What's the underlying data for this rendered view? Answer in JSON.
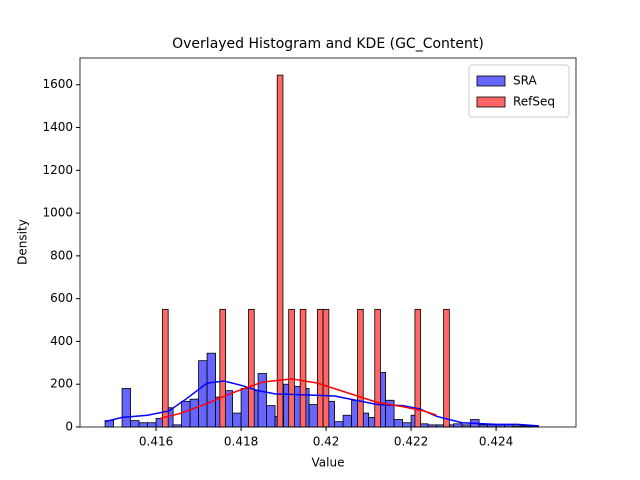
{
  "chart_data": {
    "type": "histogram",
    "title": "Overlayed Histogram and KDE (GC_Content)",
    "xlabel": "Value",
    "ylabel": "Density",
    "xlim": [
      0.41421,
      0.42588
    ],
    "ylim": [
      0,
      1725
    ],
    "xticks": [
      0.416,
      0.418,
      0.42,
      0.422,
      0.424
    ],
    "yticks": [
      0,
      200,
      400,
      600,
      800,
      1000,
      1200,
      1400,
      1600
    ],
    "legend": "upper right",
    "series": [
      {
        "name": "SRA",
        "color": "#6666ff",
        "line_color": "#0000ff",
        "bins": [
          0.4148,
          0.415,
          0.4152,
          0.4154,
          0.4156,
          0.4158,
          0.416,
          0.4162,
          0.4164,
          0.4166,
          0.4168,
          0.417,
          0.4172,
          0.4174,
          0.4176,
          0.4178,
          0.418,
          0.4182,
          0.4184,
          0.4186,
          0.4188,
          0.419,
          0.4192,
          0.4194,
          0.4196,
          0.4198,
          0.42,
          0.4202,
          0.4204,
          0.4206,
          0.4208,
          0.421,
          0.4212,
          0.4214,
          0.4216,
          0.4218,
          0.422,
          0.4222,
          0.4224,
          0.4226,
          0.4228,
          0.423,
          0.4232,
          0.4234,
          0.4236,
          0.4238,
          0.424,
          0.4242,
          0.4244,
          0.4246,
          0.4248,
          0.425
        ],
        "values": [
          30,
          0,
          180,
          30,
          20,
          20,
          40,
          90,
          10,
          120,
          130,
          310,
          345,
          140,
          170,
          65,
          180,
          170,
          250,
          100,
          50,
          200,
          190,
          180,
          105,
          190,
          120,
          25,
          55,
          125,
          65,
          45,
          255,
          125,
          35,
          20,
          55,
          15,
          10,
          10,
          10,
          15,
          10,
          35,
          10,
          10,
          10,
          10,
          5,
          5,
          5
        ],
        "kde": {
          "x": [
            0.4148,
            0.4152,
            0.4158,
            0.4163,
            0.4167,
            0.4172,
            0.4176,
            0.418,
            0.4184,
            0.4188,
            0.4195,
            0.4202,
            0.4207,
            0.4212,
            0.4218,
            0.4222,
            0.4226,
            0.4232,
            0.424,
            0.4245,
            0.425
          ],
          "values": [
            25,
            45,
            55,
            75,
            130,
            205,
            215,
            195,
            170,
            155,
            150,
            145,
            125,
            105,
            100,
            85,
            50,
            20,
            12,
            12,
            5
          ]
        }
      },
      {
        "name": "RefSeq",
        "color": "#ff6666",
        "line_color": "#ff0000",
        "bins": [
          0.41615,
          0.416285,
          0.41642,
          0.416555,
          0.41669,
          0.416825,
          0.41696,
          0.417095,
          0.41723,
          0.417365,
          0.4175,
          0.417635,
          0.41777,
          0.417905,
          0.41804,
          0.418175,
          0.41831,
          0.418445,
          0.41858,
          0.418715,
          0.41885,
          0.418985,
          0.41912,
          0.419255,
          0.41939,
          0.419525,
          0.41966,
          0.419795,
          0.41993,
          0.420065,
          0.4202,
          0.420335,
          0.42047,
          0.420605,
          0.42074,
          0.420875,
          0.42101,
          0.421145,
          0.42128,
          0.421415,
          0.42155,
          0.421685,
          0.42182,
          0.421955,
          0.42209,
          0.422225,
          0.42236,
          0.422495,
          0.42263,
          0.422765,
          0.4229
        ],
        "values": [
          550,
          0,
          0,
          0,
          0,
          0,
          0,
          0,
          0,
          0,
          550,
          0,
          0,
          0,
          0,
          550,
          0,
          0,
          0,
          0,
          1645,
          0,
          550,
          0,
          550,
          0,
          0,
          550,
          550,
          0,
          0,
          0,
          0,
          0,
          550,
          0,
          0,
          550,
          0,
          0,
          0,
          0,
          0,
          0,
          550,
          0,
          0,
          0,
          0,
          550
        ],
        "kde": {
          "x": [
            0.4161,
            0.4166,
            0.4172,
            0.4178,
            0.4185,
            0.4192,
            0.4198,
            0.4205,
            0.4212,
            0.4218,
            0.4223,
            0.4226
          ],
          "values": [
            40,
            65,
            110,
            160,
            210,
            225,
            205,
            160,
            115,
            95,
            75,
            55
          ]
        }
      }
    ]
  }
}
